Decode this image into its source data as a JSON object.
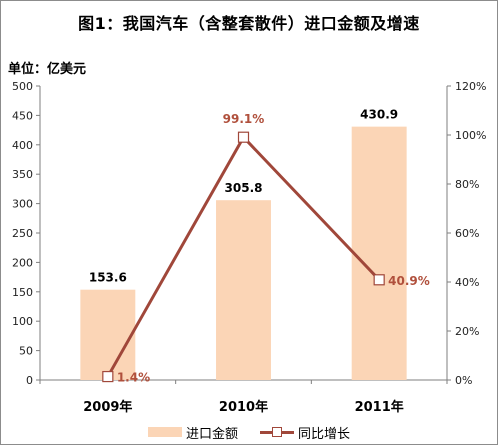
{
  "title": "图1：我国汽车（含整套散件）进口金额及增速",
  "unit_label": "单位：亿美元",
  "colors": {
    "bar": "#fbd5b6",
    "line": "#a0473a",
    "line_label": "#b0503c"
  },
  "chart_data": {
    "type": "bar",
    "categories": [
      "2009年",
      "2010年",
      "2011年"
    ],
    "series": [
      {
        "name": "进口金额",
        "type": "bar",
        "axis": "left",
        "values": [
          153.6,
          305.8,
          430.9
        ],
        "labels": [
          "153.6",
          "305.8",
          "430.9"
        ]
      },
      {
        "name": "同比增长",
        "type": "line",
        "axis": "right",
        "values": [
          1.4,
          99.1,
          40.9
        ],
        "labels": [
          "1.4%",
          "99.1%",
          "40.9%"
        ]
      }
    ],
    "y_left": {
      "lim": [
        0,
        500
      ],
      "ticks": [
        "0",
        "50",
        "100",
        "150",
        "200",
        "250",
        "300",
        "350",
        "400",
        "450",
        "500"
      ]
    },
    "y_right": {
      "lim": [
        0,
        120
      ],
      "ticks": [
        "0%",
        "20%",
        "40%",
        "60%",
        "80%",
        "100%",
        "120%"
      ]
    },
    "grid": false,
    "legend": "bottom"
  }
}
